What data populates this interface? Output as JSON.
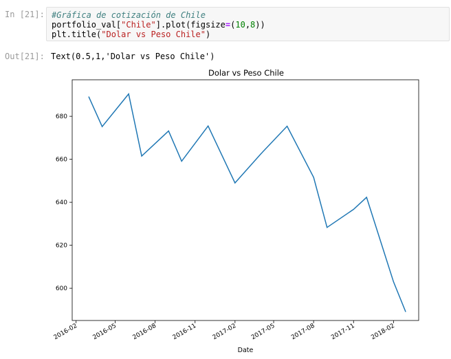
{
  "cell_in": {
    "prompt_label": "In ",
    "prompt_number": "[21]:",
    "code_comment": "#Gráfica de cotización de Chile",
    "line2_a": "portfolio_val[",
    "line2_str": "\"Chile\"",
    "line2_b": "].plot(figsize",
    "line2_eq": "=",
    "line2_c": "(",
    "line2_n1": "10",
    "line2_d": ",",
    "line2_n2": "8",
    "line2_e": "))",
    "line3_a": "plt.title(",
    "line3_str": "\"Dolar vs Peso Chile\"",
    "line3_b": ")"
  },
  "cell_out": {
    "prompt_label": "Out",
    "prompt_number": "[21]:",
    "text": "Text(0.5,1,'Dolar vs Peso Chile')"
  },
  "chart_data": {
    "type": "line",
    "title": "Dolar vs Peso Chile",
    "xlabel": "Date",
    "ylabel": "",
    "x_ticks": [
      "2016-02",
      "2016-05",
      "2016-08",
      "2016-11",
      "2017-02",
      "2017-05",
      "2017-08",
      "2017-11",
      "2018-02"
    ],
    "y_ticks": [
      600,
      620,
      640,
      660,
      680
    ],
    "ylim": [
      585,
      697
    ],
    "xlim": [
      "2016-01-23",
      "2018-03-31"
    ],
    "line_color": "#1f77b4",
    "series": [
      {
        "x": [
          "2016-03-01",
          "2016-04-01",
          "2016-06-01",
          "2016-07-01",
          "2016-09-01",
          "2016-10-01",
          "2016-12-01",
          "2017-02-01",
          "2017-04-01",
          "2017-06-01",
          "2017-08-01",
          "2017-09-01",
          "2017-11-01",
          "2017-12-01",
          "2018-02-01",
          "2018-03-01"
        ],
        "values": [
          689.2,
          675.2,
          690.4,
          661.5,
          673.2,
          659.1,
          675.5,
          649.0,
          662.4,
          675.4,
          651.6,
          628.3,
          636.7,
          642.3,
          603.0,
          589.0
        ]
      }
    ]
  }
}
